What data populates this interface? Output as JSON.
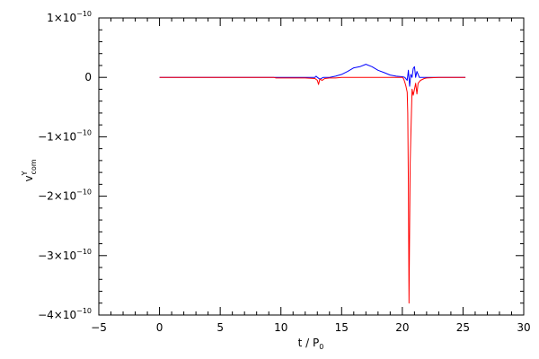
{
  "chart_data": {
    "type": "line",
    "title": "",
    "xlabel_main": "t / P",
    "xlabel_sub": "0",
    "ylabel_main": "v",
    "ylabel_sup": "Y",
    "ylabel_sub": "com",
    "xlim": [
      -5,
      30
    ],
    "ylim": [
      -4e-10,
      1e-10
    ],
    "grid": false,
    "legend": "none",
    "xticks": [
      {
        "value": -5,
        "label": "−5"
      },
      {
        "value": 0,
        "label": "0"
      },
      {
        "value": 5,
        "label": "5"
      },
      {
        "value": 10,
        "label": "10"
      },
      {
        "value": 15,
        "label": "15"
      },
      {
        "value": 20,
        "label": "20"
      },
      {
        "value": 25,
        "label": "25"
      },
      {
        "value": 30,
        "label": "30"
      }
    ],
    "yticks": [
      {
        "value": 1e-10,
        "mant": "1×10",
        "exp": "−10"
      },
      {
        "value": 0,
        "mant": "0",
        "exp": ""
      },
      {
        "value": -1e-10,
        "mant": "−1×10",
        "exp": "−10"
      },
      {
        "value": -2e-10,
        "mant": "−2×10",
        "exp": "−10"
      },
      {
        "value": -3e-10,
        "mant": "−3×10",
        "exp": "−10"
      },
      {
        "value": -4e-10,
        "mant": "−4×10",
        "exp": "−10"
      }
    ],
    "series": [
      {
        "color": "#0000ff",
        "x": [
          0,
          5,
          9.4,
          10,
          12,
          12.5,
          12.8,
          12.9,
          13.0,
          13.2,
          13.5,
          14,
          14.5,
          15,
          15.5,
          16,
          16.5,
          17,
          17.5,
          18,
          18.5,
          19,
          19.5,
          20,
          20.2,
          20.4,
          20.5,
          20.6,
          20.7,
          20.8,
          20.9,
          21.0,
          21.1,
          21.2,
          21.4,
          21.6,
          22,
          23,
          24,
          25.2
        ],
        "y": [
          0,
          0,
          0,
          0,
          0,
          0,
          0,
          2e-12,
          0,
          -3e-12,
          0,
          0,
          2e-12,
          5e-12,
          1e-11,
          1.6e-11,
          1.8e-11,
          2.2e-11,
          1.8e-11,
          1.2e-11,
          8e-12,
          4e-12,
          2e-12,
          1e-12,
          0,
          -5e-12,
          1.2e-11,
          -1.5e-11,
          5e-12,
          0,
          1.5e-11,
          1.8e-11,
          0,
          1e-11,
          0,
          0,
          0,
          0,
          0,
          0
        ]
      },
      {
        "color": "#ff0000",
        "x": [
          0,
          5,
          9.4,
          9.6,
          10,
          11,
          12,
          12.8,
          13.0,
          13.1,
          13.2,
          13.4,
          13.6,
          14,
          14.5,
          15,
          19,
          20,
          20.1,
          20.2,
          20.3,
          20.4,
          20.45,
          20.5,
          20.55,
          20.6,
          20.65,
          20.7,
          20.75,
          20.8,
          20.9,
          21.0,
          21.1,
          21.2,
          21.3,
          21.5,
          21.8,
          22,
          23,
          24,
          25.2
        ],
        "y": [
          0,
          0,
          0,
          -1e-12,
          -1e-12,
          -1e-12,
          -1e-12,
          -2e-12,
          -5e-12,
          -1.2e-11,
          -3e-12,
          -5e-12,
          -2e-12,
          -1e-12,
          -1e-12,
          0,
          0,
          0,
          -2e-12,
          -8e-12,
          -1.5e-11,
          -2.5e-11,
          -6e-11,
          -1.8e-10,
          -3.8e-10,
          -2.5e-10,
          -1.45e-10,
          -1e-10,
          -6e-11,
          -2e-11,
          -3e-11,
          -2e-11,
          -1e-11,
          -2.8e-11,
          -1e-11,
          -5e-12,
          -2e-12,
          -1e-12,
          0,
          0,
          0
        ]
      }
    ]
  }
}
